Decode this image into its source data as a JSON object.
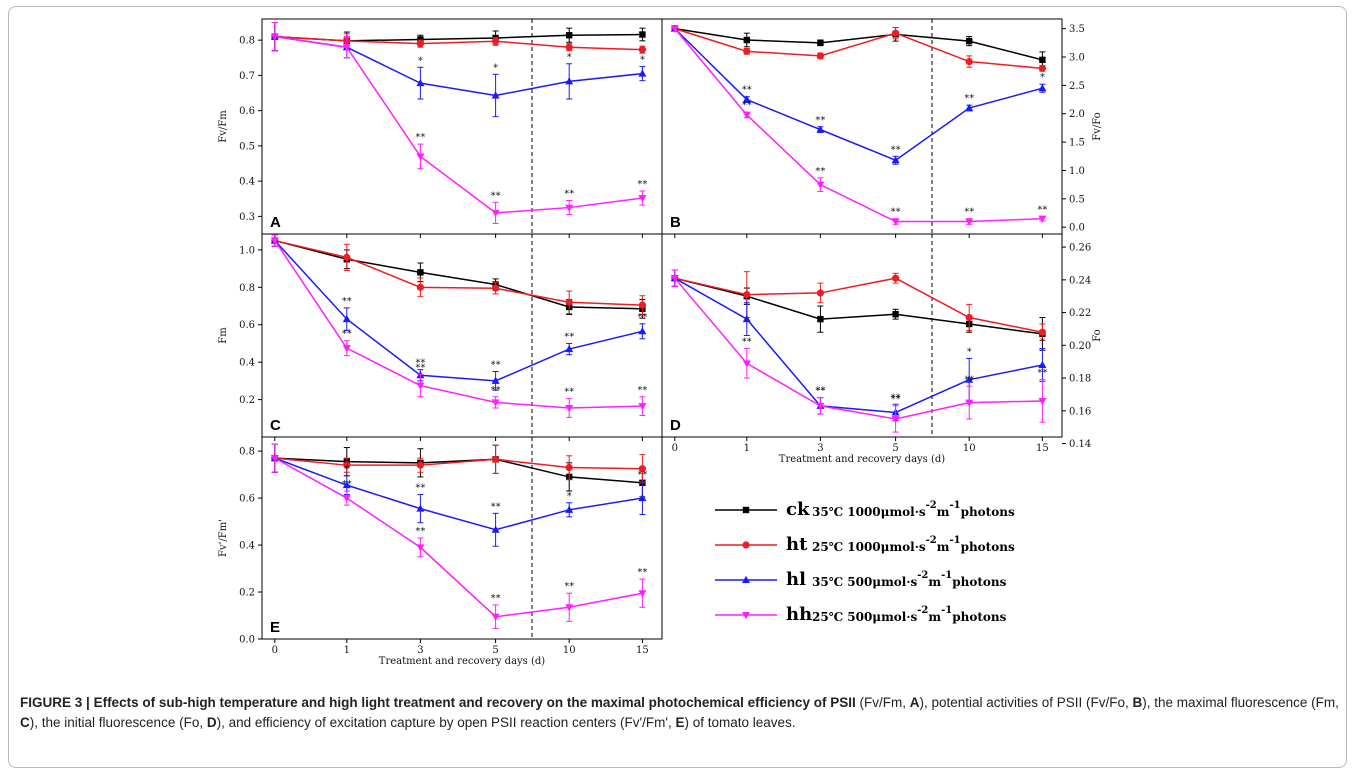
{
  "figure_number": "FIGURE 3 |",
  "caption": {
    "title": "Effects of sub-high temperature and high light treatment and recovery on the maximal photochemical efficiency of PSII",
    "p1": " (Fv/Fm, ",
    "l1": "A",
    "p2": "), potential activities of PSII (Fv/Fo, ",
    "l2": "B",
    "p3": "), the maximal fluorescence (Fm, ",
    "l3": "C",
    "p4": "), the initial fluorescence (Fo, ",
    "l4": "D",
    "p5": "), and efficiency of excitation capture by open PSII reaction centers (Fv'/Fm', ",
    "l5": "E",
    "p6": ") of tomato leaves."
  },
  "colors": {
    "ck": "#000000",
    "ht": "#ee1c24",
    "hl": "#1a1aff",
    "hh": "#ff1fff"
  },
  "legend": [
    {
      "key": "ck",
      "code": "ck",
      "desc": "35℃ 1000μmol·s",
      "sup1": "-2",
      "mid": "m",
      "sup2": "-1",
      "tail": "photons",
      "marker": "square"
    },
    {
      "key": "ht",
      "code": "ht",
      "desc": "25℃ 1000μmol·s",
      "sup1": "-2",
      "mid": "m",
      "sup2": "-1",
      "tail": "photons",
      "marker": "circle"
    },
    {
      "key": "hl",
      "code": "hl",
      "desc": "35℃ 500μmol·s",
      "sup1": "-2",
      "mid": "m",
      "sup2": "-1",
      "tail": "photons",
      "marker": "triangle-up"
    },
    {
      "key": "hh",
      "code": "hh",
      "desc": "25℃ 500μmol·s",
      "sup1": "-2",
      "mid": "m",
      "sup2": "-1",
      "tail": "photons",
      "marker": "triangle-down"
    }
  ],
  "chart_data": [
    {
      "panel": "A",
      "type": "line",
      "ylabel": "Fv/Fm",
      "xlabel": "",
      "x_categories": [
        "0",
        "1",
        "3",
        "5",
        "10",
        "15"
      ],
      "ylim": [
        0.25,
        0.86
      ],
      "yticks": [
        0.3,
        0.4,
        0.5,
        0.6,
        0.7,
        0.8
      ],
      "ytick_labels": [
        "0.3",
        "0.4",
        "0.5",
        "0.6",
        "0.7",
        "0.8"
      ],
      "y_axis_side": "left",
      "show_x_ticklabels": false,
      "divider_after_category": 3,
      "series": [
        {
          "key": "ck",
          "values": [
            0.81,
            0.798,
            0.802,
            0.806,
            0.814,
            0.816
          ],
          "errors": [
            0.04,
            0.025,
            0.012,
            0.02,
            0.02,
            0.018
          ],
          "stars": [
            "",
            "",
            "",
            "",
            "",
            ""
          ]
        },
        {
          "key": "ht",
          "values": [
            0.81,
            0.798,
            0.79,
            0.797,
            0.78,
            0.773
          ],
          "errors": [
            0.04,
            0.02,
            0.01,
            0.01,
            0.01,
            0.01
          ],
          "stars": [
            "",
            "",
            "",
            "",
            "",
            ""
          ]
        },
        {
          "key": "hl",
          "values": [
            0.81,
            0.78,
            0.678,
            0.643,
            0.683,
            0.705
          ],
          "errors": [
            0.04,
            0.03,
            0.045,
            0.06,
            0.05,
            0.02
          ],
          "stars": [
            "",
            "",
            "*",
            "*",
            "*",
            "*"
          ]
        },
        {
          "key": "hh",
          "values": [
            0.81,
            0.78,
            0.47,
            0.31,
            0.325,
            0.352
          ],
          "errors": [
            0.04,
            0.03,
            0.035,
            0.03,
            0.02,
            0.02
          ],
          "stars": [
            "",
            "",
            "**",
            "**",
            "**",
            "**"
          ]
        }
      ]
    },
    {
      "panel": "B",
      "type": "line",
      "ylabel": "Fv/Fo",
      "xlabel": "",
      "x_categories": [
        "0",
        "1",
        "3",
        "5",
        "10",
        "15"
      ],
      "ylim": [
        -0.12,
        3.67
      ],
      "yticks": [
        0.0,
        0.5,
        1.0,
        1.5,
        2.0,
        2.5,
        3.0,
        3.5
      ],
      "ytick_labels": [
        "0.0",
        "0.5",
        "1.0",
        "1.5",
        "2.0",
        "2.5",
        "3.0",
        "3.5"
      ],
      "y_axis_side": "right",
      "show_x_ticklabels": false,
      "divider_after_category": 3,
      "series": [
        {
          "key": "ck",
          "values": [
            3.5,
            3.3,
            3.25,
            3.4,
            3.28,
            2.95
          ],
          "errors": [
            0.05,
            0.12,
            0.05,
            0.12,
            0.08,
            0.14
          ],
          "stars": [
            "",
            "",
            "",
            "",
            "",
            ""
          ]
        },
        {
          "key": "ht",
          "values": [
            3.5,
            3.1,
            3.02,
            3.42,
            2.92,
            2.8
          ],
          "errors": [
            0.05,
            0.05,
            0.05,
            0.1,
            0.1,
            0.05
          ],
          "stars": [
            "",
            "",
            "",
            "",
            "",
            ""
          ]
        },
        {
          "key": "hl",
          "values": [
            3.5,
            2.25,
            1.72,
            1.18,
            2.1,
            2.45
          ],
          "errors": [
            0.05,
            0.05,
            0.05,
            0.07,
            0.05,
            0.07
          ],
          "stars": [
            "",
            "**",
            "**",
            "**",
            "**",
            "*"
          ]
        },
        {
          "key": "hh",
          "values": [
            3.5,
            1.98,
            0.75,
            0.1,
            0.1,
            0.15
          ],
          "errors": [
            0.05,
            0.05,
            0.12,
            0.05,
            0.05,
            0.04
          ],
          "stars": [
            "",
            "**",
            "**",
            "**",
            "**",
            "**"
          ]
        }
      ]
    },
    {
      "panel": "C",
      "type": "line",
      "ylabel": "Fm",
      "xlabel": "",
      "x_categories": [
        "0",
        "1",
        "3",
        "5",
        "10",
        "15"
      ],
      "ylim": [
        0.0,
        1.085
      ],
      "yticks": [
        0.2,
        0.4,
        0.6,
        0.8,
        1.0
      ],
      "ytick_labels": [
        "0.2",
        "0.4",
        "0.6",
        "0.8",
        "1.0"
      ],
      "y_axis_side": "left",
      "show_x_ticklabels": false,
      "divider_after_category": 3,
      "series": [
        {
          "key": "ck",
          "values": [
            1.05,
            0.95,
            0.88,
            0.815,
            0.695,
            0.685
          ],
          "errors": [
            0.03,
            0.05,
            0.05,
            0.03,
            0.04,
            0.05
          ],
          "stars": [
            "",
            "",
            "",
            "",
            "",
            ""
          ]
        },
        {
          "key": "ht",
          "values": [
            1.05,
            0.96,
            0.8,
            0.795,
            0.72,
            0.705
          ],
          "errors": [
            0.03,
            0.07,
            0.05,
            0.03,
            0.06,
            0.05
          ],
          "stars": [
            "",
            "",
            "",
            "",
            "",
            ""
          ]
        },
        {
          "key": "hl",
          "values": [
            1.05,
            0.63,
            0.33,
            0.3,
            0.47,
            0.565
          ],
          "errors": [
            0.03,
            0.06,
            0.03,
            0.05,
            0.03,
            0.04
          ],
          "stars": [
            "",
            "**",
            "**",
            "**",
            "**",
            "**"
          ]
        },
        {
          "key": "hh",
          "values": [
            1.05,
            0.475,
            0.275,
            0.185,
            0.155,
            0.165
          ],
          "errors": [
            0.03,
            0.04,
            0.06,
            0.03,
            0.05,
            0.05
          ],
          "stars": [
            "",
            "**",
            "**",
            "**",
            "**",
            "**"
          ]
        }
      ]
    },
    {
      "panel": "D",
      "type": "line",
      "ylabel": "Fo",
      "xlabel": "Treatment and recovery days (d)",
      "x_categories": [
        "0",
        "1",
        "3",
        "5",
        "10",
        "15"
      ],
      "ylim": [
        0.144,
        0.268
      ],
      "yticks": [
        0.14,
        0.16,
        0.18,
        0.2,
        0.22,
        0.24,
        0.26
      ],
      "ytick_labels": [
        "0.14",
        "0.16",
        "0.18",
        "0.20",
        "0.22",
        "0.24",
        "0.26"
      ],
      "y_axis_side": "right",
      "show_x_ticklabels": true,
      "divider_after_category": 3,
      "series": [
        {
          "key": "ck",
          "values": [
            0.241,
            0.23,
            0.216,
            0.219,
            0.213,
            0.207
          ],
          "errors": [
            0.005,
            0.005,
            0.008,
            0.003,
            0.005,
            0.01
          ],
          "stars": [
            "",
            "",
            "",
            "",
            "",
            ""
          ]
        },
        {
          "key": "ht",
          "values": [
            0.241,
            0.231,
            0.232,
            0.241,
            0.217,
            0.208
          ],
          "errors": [
            0.005,
            0.014,
            0.006,
            0.003,
            0.008,
            0.005
          ],
          "stars": [
            "",
            "",
            "",
            "",
            "",
            ""
          ]
        },
        {
          "key": "hl",
          "values": [
            0.241,
            0.216,
            0.163,
            0.159,
            0.179,
            0.188
          ],
          "errors": [
            0.005,
            0.01,
            0.005,
            0.005,
            0.013,
            0.01
          ],
          "stars": [
            "",
            "",
            "**",
            "**",
            "*",
            "*"
          ]
        },
        {
          "key": "hh",
          "values": [
            0.241,
            0.189,
            0.163,
            0.155,
            0.165,
            0.166
          ],
          "errors": [
            0.005,
            0.009,
            0.005,
            0.008,
            0.01,
            0.013
          ],
          "stars": [
            "",
            "**",
            "**",
            "**",
            "**",
            "**"
          ]
        }
      ]
    },
    {
      "panel": "E",
      "type": "line",
      "ylabel": "Fv'/Fm'",
      "xlabel": "Treatment and recovery days (d)",
      "x_categories": [
        "0",
        "1",
        "3",
        "5",
        "10",
        "15"
      ],
      "ylim": [
        0.0,
        0.86
      ],
      "yticks": [
        0.0,
        0.2,
        0.4,
        0.6,
        0.8
      ],
      "ytick_labels": [
        "0.0",
        "0.2",
        "0.4",
        "0.6",
        "0.8"
      ],
      "y_axis_side": "left",
      "show_x_ticklabels": true,
      "divider_after_category": 3,
      "series": [
        {
          "key": "ck",
          "values": [
            0.77,
            0.755,
            0.75,
            0.765,
            0.69,
            0.665
          ],
          "errors": [
            0.06,
            0.06,
            0.06,
            0.06,
            0.06,
            0.06
          ],
          "stars": [
            "",
            "",
            "",
            "",
            "",
            ""
          ]
        },
        {
          "key": "ht",
          "values": [
            0.77,
            0.74,
            0.74,
            0.765,
            0.73,
            0.725
          ],
          "errors": [
            0.06,
            0.03,
            0.03,
            0.06,
            0.05,
            0.06
          ],
          "stars": [
            "",
            "",
            "",
            "",
            "",
            ""
          ]
        },
        {
          "key": "hl",
          "values": [
            0.77,
            0.655,
            0.555,
            0.465,
            0.55,
            0.6
          ],
          "errors": [
            0.06,
            0.04,
            0.06,
            0.07,
            0.03,
            0.07
          ],
          "stars": [
            "",
            "*",
            "**",
            "**",
            "*",
            "**"
          ]
        },
        {
          "key": "hh",
          "values": [
            0.77,
            0.6,
            0.39,
            0.095,
            0.135,
            0.195
          ],
          "errors": [
            0.06,
            0.03,
            0.04,
            0.05,
            0.06,
            0.06
          ],
          "stars": [
            "",
            "**",
            "**",
            "**",
            "**",
            "**"
          ]
        }
      ]
    }
  ]
}
